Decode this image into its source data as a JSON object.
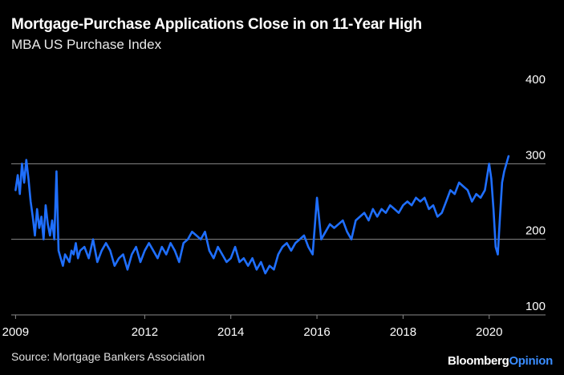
{
  "header": {
    "title": "Mortgage-Purchase Applications Close in on 11-Year High",
    "subtitle": "MBA US Purchase Index"
  },
  "footer": {
    "source": "Source: Mortgage Bankers Association",
    "brand_primary": "Bloomberg",
    "brand_secondary": "Opinion"
  },
  "colors": {
    "background": "#000000",
    "line": "#1f6fff",
    "grid": "#8a8a8a",
    "text": "#ffffff"
  },
  "chart_data": {
    "type": "line",
    "title": "Mortgage-Purchase Applications Close in on 11-Year High",
    "subtitle": "MBA US Purchase Index",
    "xlabel": "",
    "ylabel": "",
    "xlim": [
      2008.9,
      2020.75
    ],
    "ylim": [
      100,
      400
    ],
    "x_ticks": [
      2009,
      2012,
      2014,
      2016,
      2018,
      2020
    ],
    "y_ticks": [
      100,
      200,
      300,
      400
    ],
    "grid": "horizontal",
    "legend": "none",
    "series": [
      {
        "values_note": "weekly index, approximate",
        "x": [
          2009.0,
          2009.05,
          2009.1,
          2009.15,
          2009.2,
          2009.25,
          2009.3,
          2009.35,
          2009.4,
          2009.45,
          2009.5,
          2009.55,
          2009.6,
          2009.65,
          2009.7,
          2009.75,
          2009.8,
          2009.85,
          2009.9,
          2009.95,
          2010.0,
          2010.05,
          2010.1,
          2010.15,
          2010.2,
          2010.25,
          2010.3,
          2010.35,
          2010.4,
          2010.45,
          2010.5,
          2010.6,
          2010.7,
          2010.8,
          2010.9,
          2011.0,
          2011.1,
          2011.2,
          2011.3,
          2011.4,
          2011.5,
          2011.6,
          2011.7,
          2011.8,
          2011.9,
          2012.0,
          2012.1,
          2012.2,
          2012.3,
          2012.4,
          2012.5,
          2012.6,
          2012.7,
          2012.8,
          2012.9,
          2013.0,
          2013.1,
          2013.2,
          2013.3,
          2013.4,
          2013.5,
          2013.6,
          2013.7,
          2013.8,
          2013.9,
          2014.0,
          2014.1,
          2014.2,
          2014.3,
          2014.4,
          2014.5,
          2014.6,
          2014.7,
          2014.8,
          2014.9,
          2015.0,
          2015.1,
          2015.2,
          2015.3,
          2015.4,
          2015.5,
          2015.6,
          2015.7,
          2015.8,
          2015.9,
          2016.0,
          2016.1,
          2016.2,
          2016.3,
          2016.4,
          2016.5,
          2016.6,
          2016.7,
          2016.8,
          2016.9,
          2017.0,
          2017.1,
          2017.2,
          2017.3,
          2017.4,
          2017.5,
          2017.6,
          2017.7,
          2017.8,
          2017.9,
          2018.0,
          2018.1,
          2018.2,
          2018.3,
          2018.4,
          2018.5,
          2018.6,
          2018.7,
          2018.8,
          2018.9,
          2019.0,
          2019.1,
          2019.2,
          2019.3,
          2019.4,
          2019.5,
          2019.6,
          2019.7,
          2019.8,
          2019.9,
          2020.0,
          2020.05,
          2020.1,
          2020.15,
          2020.2,
          2020.25,
          2020.3,
          2020.35,
          2020.4,
          2020.45
        ],
        "y": [
          265,
          285,
          260,
          300,
          275,
          305,
          280,
          250,
          230,
          205,
          240,
          215,
          230,
          200,
          245,
          220,
          205,
          225,
          200,
          290,
          185,
          175,
          165,
          180,
          175,
          170,
          185,
          180,
          195,
          175,
          185,
          190,
          175,
          200,
          170,
          185,
          195,
          185,
          165,
          175,
          180,
          160,
          180,
          190,
          170,
          185,
          195,
          185,
          175,
          190,
          180,
          195,
          185,
          170,
          195,
          200,
          210,
          205,
          200,
          210,
          185,
          175,
          190,
          180,
          170,
          175,
          190,
          170,
          175,
          165,
          175,
          160,
          170,
          155,
          165,
          160,
          180,
          190,
          195,
          185,
          195,
          200,
          205,
          190,
          180,
          255,
          200,
          210,
          220,
          215,
          220,
          225,
          210,
          200,
          225,
          230,
          235,
          225,
          240,
          230,
          240,
          235,
          245,
          240,
          235,
          245,
          250,
          245,
          255,
          250,
          255,
          240,
          245,
          230,
          235,
          250,
          265,
          260,
          275,
          270,
          265,
          250,
          260,
          255,
          265,
          300,
          280,
          240,
          190,
          180,
          230,
          275,
          290,
          300,
          310
        ]
      }
    ]
  }
}
